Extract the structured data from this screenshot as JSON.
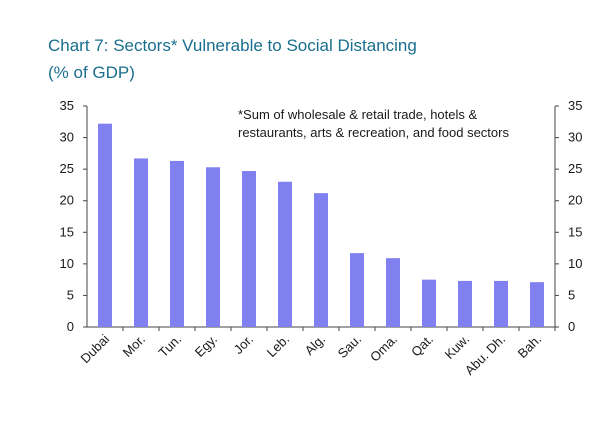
{
  "title": "Chart 7: Sectors* Vulnerable to Social Distancing",
  "subtitle": "(% of GDP)",
  "colors": {
    "title": "#1a6e8e",
    "bar": "#8080f0",
    "axis": "#444444"
  },
  "chart_data": {
    "type": "bar",
    "title": "Chart 7: Sectors* Vulnerable to Social Distancing",
    "subtitle": "(% of GDP)",
    "categories": [
      "Dubai",
      "Mor.",
      "Tun.",
      "Egy.",
      "Jor.",
      "Leb.",
      "Alg.",
      "Sau.",
      "Oma.",
      "Qat.",
      "Kuw.",
      "Abu. Dh.",
      "Bah."
    ],
    "values": [
      32.2,
      26.7,
      26.3,
      25.3,
      24.7,
      23.0,
      21.2,
      11.7,
      10.9,
      7.5,
      7.3,
      7.3,
      7.1
    ],
    "ylim": [
      0,
      35
    ],
    "yticks": [
      0,
      5,
      10,
      15,
      20,
      25,
      30,
      35
    ],
    "y_axes": "left and right",
    "grid": false,
    "annotation": [
      "*Sum of wholesale & retail trade, hotels &",
      "restaurants, arts & recreation, and food sectors"
    ]
  }
}
